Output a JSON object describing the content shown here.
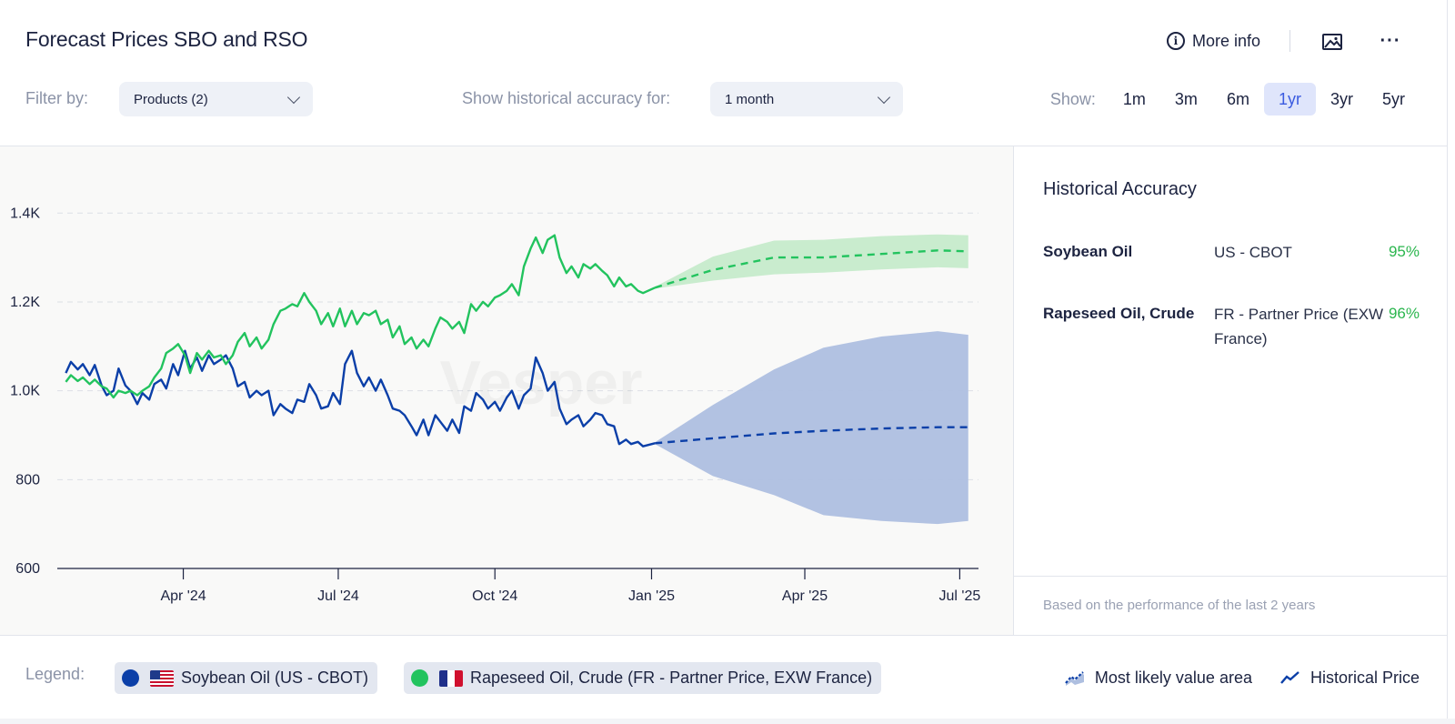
{
  "header": {
    "title": "Forecast Prices SBO and RSO",
    "more_info": "More info"
  },
  "filters": {
    "filter_by_label": "Filter by:",
    "products_value": "Products (2)",
    "accuracy_label": "Show historical accuracy for:",
    "accuracy_value": "1 month",
    "show_label": "Show:",
    "ranges": [
      "1m",
      "3m",
      "6m",
      "1yr",
      "3yr",
      "5yr"
    ],
    "active_range": "1yr"
  },
  "side_panel": {
    "title": "Historical Accuracy",
    "rows": [
      {
        "name": "Soybean Oil",
        "market": "US - CBOT",
        "value": "95%"
      },
      {
        "name": "Rapeseed Oil, Crude",
        "market": "FR - Partner Price (EXW France)",
        "value": "96%"
      }
    ],
    "footnote": "Based on the performance of the last 2 years"
  },
  "legend": {
    "label": "Legend:",
    "items": [
      {
        "label": "Soybean Oil (US - CBOT)",
        "color": "#0b3fa8",
        "flag": "us-flag-icon"
      },
      {
        "label": "Rapeseed Oil, Crude (FR - Partner Price, EXW France)",
        "color": "#22c35e",
        "flag": "fr-flag-icon"
      }
    ],
    "most_likely": "Most likely value area",
    "historical": "Historical Price"
  },
  "chart_data": {
    "type": "line",
    "ylim": [
      600,
      1550
    ],
    "yticks": [
      600,
      800,
      1000,
      1200,
      1400
    ],
    "ytick_labels": [
      "600",
      "800",
      "1.0K",
      "1.2K",
      "1.4K"
    ],
    "xlim": [
      "2024-01-18",
      "2025-07-12"
    ],
    "xticks": [
      "2024-04-01",
      "2024-07-01",
      "2024-10-01",
      "2025-01-01",
      "2025-04-01",
      "2025-07-01"
    ],
    "xtick_labels": [
      "Apr '24",
      "Jul '24",
      "Oct '24",
      "Jan '25",
      "Apr '25",
      "Jul '25"
    ],
    "grid": "horizontal dashed",
    "watermark": "Vesper",
    "series": [
      {
        "name": "Soybean Oil (US - CBOT)",
        "color": "#0b3fa8",
        "band_color": "#aebfe0",
        "historical": [
          [
            "2024-01-23",
            1040
          ],
          [
            "2024-01-26",
            1065
          ],
          [
            "2024-01-30",
            1048
          ],
          [
            "2024-02-02",
            1060
          ],
          [
            "2024-02-06",
            1035
          ],
          [
            "2024-02-09",
            1058
          ],
          [
            "2024-02-13",
            1012
          ],
          [
            "2024-02-16",
            990
          ],
          [
            "2024-02-20",
            1000
          ],
          [
            "2024-02-23",
            1050
          ],
          [
            "2024-02-27",
            1012
          ],
          [
            "2024-03-01",
            1000
          ],
          [
            "2024-03-05",
            970
          ],
          [
            "2024-03-08",
            995
          ],
          [
            "2024-03-12",
            980
          ],
          [
            "2024-03-15",
            1015
          ],
          [
            "2024-03-19",
            1025
          ],
          [
            "2024-03-22",
            1005
          ],
          [
            "2024-03-26",
            1060
          ],
          [
            "2024-03-29",
            1035
          ],
          [
            "2024-04-02",
            1090
          ],
          [
            "2024-04-05",
            1050
          ],
          [
            "2024-04-09",
            1075
          ],
          [
            "2024-04-12",
            1045
          ],
          [
            "2024-04-16",
            1080
          ],
          [
            "2024-04-19",
            1060
          ],
          [
            "2024-04-23",
            1070
          ],
          [
            "2024-04-26",
            1080
          ],
          [
            "2024-04-30",
            1050
          ],
          [
            "2024-05-03",
            1010
          ],
          [
            "2024-05-07",
            1020
          ],
          [
            "2024-05-10",
            985
          ],
          [
            "2024-05-14",
            1000
          ],
          [
            "2024-05-17",
            990
          ],
          [
            "2024-05-21",
            1000
          ],
          [
            "2024-05-24",
            945
          ],
          [
            "2024-05-28",
            970
          ],
          [
            "2024-05-31",
            960
          ],
          [
            "2024-06-04",
            950
          ],
          [
            "2024-06-07",
            980
          ],
          [
            "2024-06-11",
            975
          ],
          [
            "2024-06-14",
            1015
          ],
          [
            "2024-06-18",
            990
          ],
          [
            "2024-06-21",
            960
          ],
          [
            "2024-06-25",
            965
          ],
          [
            "2024-06-28",
            995
          ],
          [
            "2024-07-02",
            970
          ],
          [
            "2024-07-05",
            1060
          ],
          [
            "2024-07-09",
            1090
          ],
          [
            "2024-07-12",
            1040
          ],
          [
            "2024-07-16",
            1010
          ],
          [
            "2024-07-19",
            1030
          ],
          [
            "2024-07-23",
            1000
          ],
          [
            "2024-07-26",
            1025
          ],
          [
            "2024-07-30",
            990
          ],
          [
            "2024-08-02",
            960
          ],
          [
            "2024-08-06",
            955
          ],
          [
            "2024-08-09",
            945
          ],
          [
            "2024-08-13",
            920
          ],
          [
            "2024-08-16",
            900
          ],
          [
            "2024-08-20",
            935
          ],
          [
            "2024-08-23",
            900
          ],
          [
            "2024-08-27",
            945
          ],
          [
            "2024-08-30",
            930
          ],
          [
            "2024-09-03",
            910
          ],
          [
            "2024-09-06",
            935
          ],
          [
            "2024-09-10",
            905
          ],
          [
            "2024-09-13",
            965
          ],
          [
            "2024-09-17",
            955
          ],
          [
            "2024-09-20",
            995
          ],
          [
            "2024-09-24",
            980
          ],
          [
            "2024-09-27",
            960
          ],
          [
            "2024-10-01",
            975
          ],
          [
            "2024-10-04",
            955
          ],
          [
            "2024-10-08",
            985
          ],
          [
            "2024-10-11",
            1000
          ],
          [
            "2024-10-15",
            960
          ],
          [
            "2024-10-18",
            990
          ],
          [
            "2024-10-22",
            1005
          ],
          [
            "2024-10-25",
            1075
          ],
          [
            "2024-10-29",
            1040
          ],
          [
            "2024-11-01",
            1000
          ],
          [
            "2024-11-05",
            1020
          ],
          [
            "2024-11-08",
            960
          ],
          [
            "2024-11-12",
            925
          ],
          [
            "2024-11-15",
            935
          ],
          [
            "2024-11-19",
            945
          ],
          [
            "2024-11-22",
            920
          ],
          [
            "2024-11-26",
            935
          ],
          [
            "2024-11-29",
            950
          ],
          [
            "2024-12-03",
            945
          ],
          [
            "2024-12-06",
            925
          ],
          [
            "2024-12-10",
            920
          ],
          [
            "2024-12-13",
            880
          ],
          [
            "2024-12-17",
            890
          ],
          [
            "2024-12-20",
            880
          ],
          [
            "2024-12-24",
            885
          ],
          [
            "2024-12-27",
            875
          ],
          [
            "2025-01-03",
            882
          ]
        ],
        "forecast": [
          {
            "x": "2025-01-03",
            "y": 882,
            "lo": 880,
            "hi": 884
          },
          {
            "x": "2025-02-06",
            "y": 893,
            "lo": 808,
            "hi": 968
          },
          {
            "x": "2025-03-14",
            "y": 904,
            "lo": 765,
            "hi": 1048
          },
          {
            "x": "2025-04-12",
            "y": 910,
            "lo": 720,
            "hi": 1097
          },
          {
            "x": "2025-05-16",
            "y": 915,
            "lo": 707,
            "hi": 1122
          },
          {
            "x": "2025-06-18",
            "y": 918,
            "lo": 700,
            "hi": 1134
          },
          {
            "x": "2025-07-06",
            "y": 918,
            "lo": 707,
            "hi": 1126
          }
        ]
      },
      {
        "name": "Rapeseed Oil, Crude (FR - Partner Price, EXW France)",
        "color": "#22c35e",
        "band_color": "#c6ebcb",
        "historical": [
          [
            "2024-01-23",
            1020
          ],
          [
            "2024-01-26",
            1035
          ],
          [
            "2024-01-30",
            1022
          ],
          [
            "2024-02-02",
            1030
          ],
          [
            "2024-02-06",
            1015
          ],
          [
            "2024-02-09",
            1025
          ],
          [
            "2024-02-13",
            1010
          ],
          [
            "2024-02-16",
            1005
          ],
          [
            "2024-02-20",
            985
          ],
          [
            "2024-02-23",
            1000
          ],
          [
            "2024-02-27",
            995
          ],
          [
            "2024-03-01",
            1000
          ],
          [
            "2024-03-05",
            990
          ],
          [
            "2024-03-08",
            1000
          ],
          [
            "2024-03-12",
            1010
          ],
          [
            "2024-03-15",
            1030
          ],
          [
            "2024-03-19",
            1050
          ],
          [
            "2024-03-22",
            1085
          ],
          [
            "2024-03-26",
            1095
          ],
          [
            "2024-03-29",
            1105
          ],
          [
            "2024-04-02",
            1080
          ],
          [
            "2024-04-05",
            1040
          ],
          [
            "2024-04-09",
            1085
          ],
          [
            "2024-04-12",
            1070
          ],
          [
            "2024-04-16",
            1090
          ],
          [
            "2024-04-19",
            1075
          ],
          [
            "2024-04-23",
            1080
          ],
          [
            "2024-04-26",
            1060
          ],
          [
            "2024-04-30",
            1080
          ],
          [
            "2024-05-03",
            1110
          ],
          [
            "2024-05-07",
            1130
          ],
          [
            "2024-05-10",
            1100
          ],
          [
            "2024-05-14",
            1120
          ],
          [
            "2024-05-17",
            1095
          ],
          [
            "2024-05-21",
            1115
          ],
          [
            "2024-05-24",
            1150
          ],
          [
            "2024-05-28",
            1180
          ],
          [
            "2024-05-31",
            1185
          ],
          [
            "2024-06-04",
            1195
          ],
          [
            "2024-06-07",
            1190
          ],
          [
            "2024-06-11",
            1220
          ],
          [
            "2024-06-14",
            1200
          ],
          [
            "2024-06-18",
            1180
          ],
          [
            "2024-06-21",
            1150
          ],
          [
            "2024-06-25",
            1175
          ],
          [
            "2024-06-28",
            1145
          ],
          [
            "2024-07-02",
            1185
          ],
          [
            "2024-07-05",
            1145
          ],
          [
            "2024-07-09",
            1180
          ],
          [
            "2024-07-12",
            1150
          ],
          [
            "2024-07-16",
            1175
          ],
          [
            "2024-07-19",
            1170
          ],
          [
            "2024-07-23",
            1180
          ],
          [
            "2024-07-26",
            1150
          ],
          [
            "2024-07-30",
            1160
          ],
          [
            "2024-08-02",
            1120
          ],
          [
            "2024-08-06",
            1145
          ],
          [
            "2024-08-09",
            1105
          ],
          [
            "2024-08-13",
            1120
          ],
          [
            "2024-08-16",
            1095
          ],
          [
            "2024-08-20",
            1115
          ],
          [
            "2024-08-23",
            1100
          ],
          [
            "2024-08-27",
            1140
          ],
          [
            "2024-08-30",
            1165
          ],
          [
            "2024-09-03",
            1155
          ],
          [
            "2024-09-06",
            1140
          ],
          [
            "2024-09-10",
            1155
          ],
          [
            "2024-09-13",
            1130
          ],
          [
            "2024-09-17",
            1195
          ],
          [
            "2024-09-20",
            1180
          ],
          [
            "2024-09-24",
            1200
          ],
          [
            "2024-09-27",
            1190
          ],
          [
            "2024-10-01",
            1210
          ],
          [
            "2024-10-04",
            1215
          ],
          [
            "2024-10-08",
            1225
          ],
          [
            "2024-10-11",
            1240
          ],
          [
            "2024-10-15",
            1215
          ],
          [
            "2024-10-18",
            1280
          ],
          [
            "2024-10-22",
            1320
          ],
          [
            "2024-10-25",
            1345
          ],
          [
            "2024-10-29",
            1310
          ],
          [
            "2024-11-01",
            1340
          ],
          [
            "2024-11-05",
            1350
          ],
          [
            "2024-11-08",
            1300
          ],
          [
            "2024-11-12",
            1265
          ],
          [
            "2024-11-15",
            1280
          ],
          [
            "2024-11-19",
            1255
          ],
          [
            "2024-11-22",
            1285
          ],
          [
            "2024-11-26",
            1275
          ],
          [
            "2024-11-29",
            1285
          ],
          [
            "2024-12-03",
            1270
          ],
          [
            "2024-12-06",
            1260
          ],
          [
            "2024-12-10",
            1235
          ],
          [
            "2024-12-13",
            1255
          ],
          [
            "2024-12-17",
            1235
          ],
          [
            "2024-12-20",
            1240
          ],
          [
            "2024-12-24",
            1225
          ],
          [
            "2024-12-27",
            1220
          ],
          [
            "2025-01-03",
            1232
          ]
        ],
        "forecast": [
          {
            "x": "2025-01-03",
            "y": 1232,
            "lo": 1230,
            "hi": 1234
          },
          {
            "x": "2025-02-06",
            "y": 1272,
            "lo": 1248,
            "hi": 1302
          },
          {
            "x": "2025-03-14",
            "y": 1300,
            "lo": 1262,
            "hi": 1338
          },
          {
            "x": "2025-04-12",
            "y": 1300,
            "lo": 1266,
            "hi": 1340
          },
          {
            "x": "2025-05-16",
            "y": 1308,
            "lo": 1273,
            "hi": 1348
          },
          {
            "x": "2025-06-18",
            "y": 1316,
            "lo": 1278,
            "hi": 1352
          },
          {
            "x": "2025-07-06",
            "y": 1314,
            "lo": 1276,
            "hi": 1350
          }
        ]
      }
    ]
  }
}
